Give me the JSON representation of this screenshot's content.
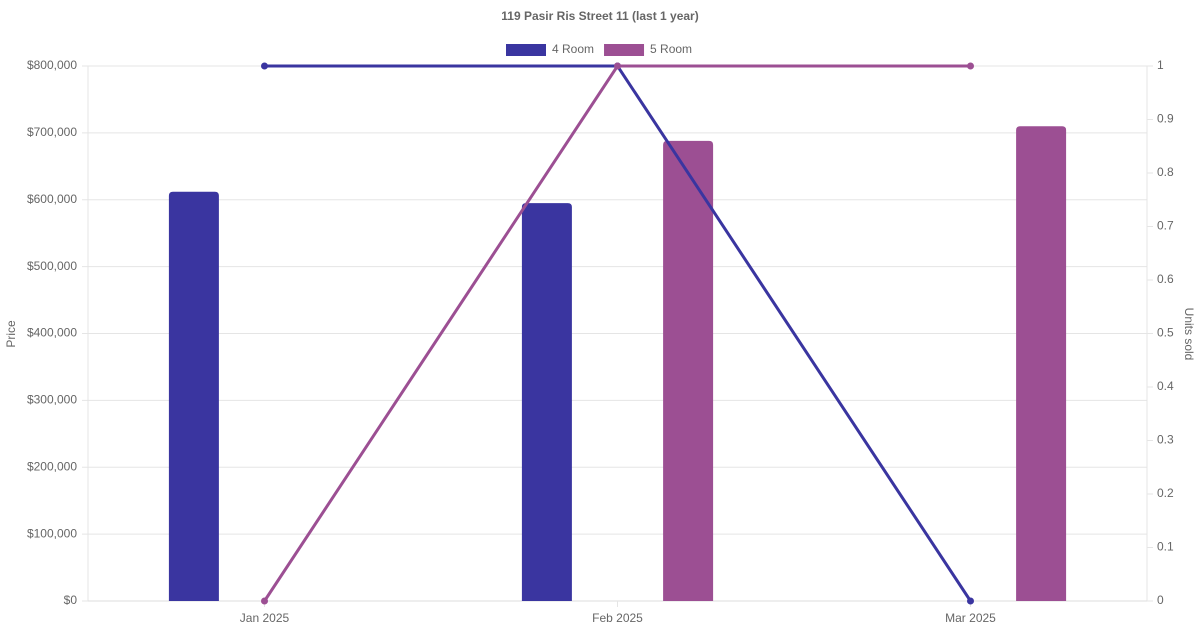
{
  "chart_data": {
    "type": "bar",
    "title": "119 Pasir Ris Street 11 (last 1 year)",
    "y_label": "Price",
    "y2_label": "Units sold",
    "categories": [
      "Jan 2025",
      "Feb 2025",
      "Mar 2025"
    ],
    "series": [
      {
        "name": "4 Room",
        "color": "#3a35a0",
        "values": [
          612000,
          595000,
          null
        ],
        "line": {
          "type": "line",
          "axis": "y2",
          "values": [
            1,
            1,
            0
          ]
        }
      },
      {
        "name": "5 Room",
        "color": "#9c4f93",
        "values": [
          null,
          688000,
          710000
        ],
        "line": {
          "type": "line",
          "axis": "y2",
          "values": [
            0,
            1,
            1
          ]
        }
      }
    ],
    "ylim": [
      0,
      800000
    ],
    "yticks": [
      {
        "value": 0,
        "label": "$0"
      },
      {
        "value": 100000,
        "label": "$100,000"
      },
      {
        "value": 200000,
        "label": "$200,000"
      },
      {
        "value": 300000,
        "label": "$300,000"
      },
      {
        "value": 400000,
        "label": "$400,000"
      },
      {
        "value": 500000,
        "label": "$500,000"
      },
      {
        "value": 600000,
        "label": "$600,000"
      },
      {
        "value": 700000,
        "label": "$700,000"
      },
      {
        "value": 800000,
        "label": "$800,000"
      }
    ],
    "y2lim": [
      0,
      1
    ],
    "y2ticks": [
      0,
      0.1,
      0.2,
      0.3,
      0.4,
      0.5,
      0.6,
      0.7,
      0.8,
      0.9,
      1
    ],
    "grid": true,
    "legend": "top"
  }
}
